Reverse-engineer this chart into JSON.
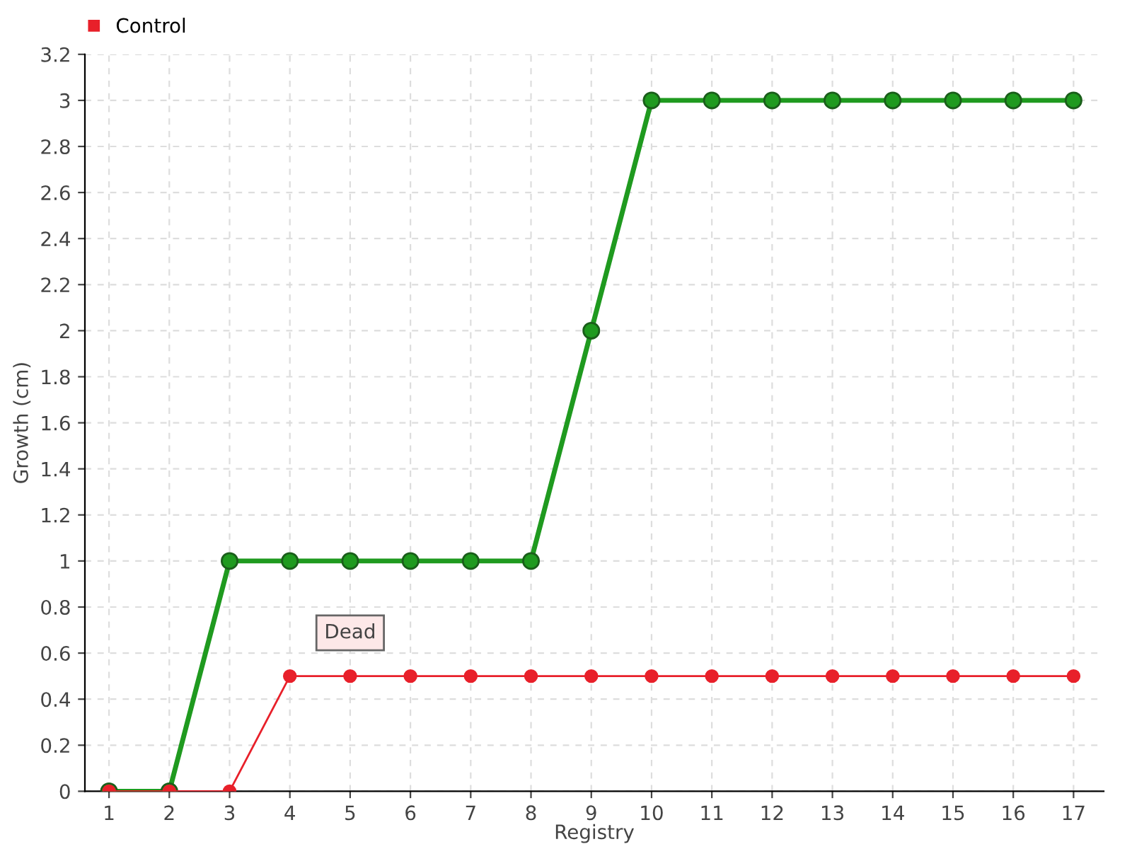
{
  "chart_data": {
    "type": "line",
    "xlabel": "Registry",
    "ylabel": "Growth (cm)",
    "categories": [
      "1",
      "2",
      "3",
      "4",
      "5",
      "6",
      "7",
      "8",
      "9",
      "10",
      "11",
      "12",
      "13",
      "14",
      "15",
      "16",
      "17"
    ],
    "series": [
      {
        "color": "#1f9a1f",
        "values": [
          0,
          0,
          1,
          1,
          1,
          1,
          1,
          1,
          2,
          3,
          3,
          3,
          3,
          3,
          3,
          3,
          3
        ]
      },
      {
        "name": "Control",
        "color": "#e8202a",
        "values": [
          0,
          0,
          0,
          0.5,
          0.5,
          0.5,
          0.5,
          0.5,
          0.5,
          0.5,
          0.5,
          0.5,
          0.5,
          0.5,
          0.5,
          0.5,
          0.5
        ]
      }
    ],
    "ylim": [
      0,
      3.2
    ],
    "yticks": [
      0,
      0.2,
      0.4,
      0.6,
      0.8,
      1,
      1.2,
      1.4,
      1.6,
      1.8,
      2,
      2.2,
      2.4,
      2.6,
      2.8,
      3,
      3.2
    ],
    "annotations": [
      {
        "text": "Dead",
        "x": "5",
        "y": 0.5
      }
    ],
    "grid": true,
    "legend": "top left",
    "marker": "circle",
    "line_style": "solid"
  }
}
